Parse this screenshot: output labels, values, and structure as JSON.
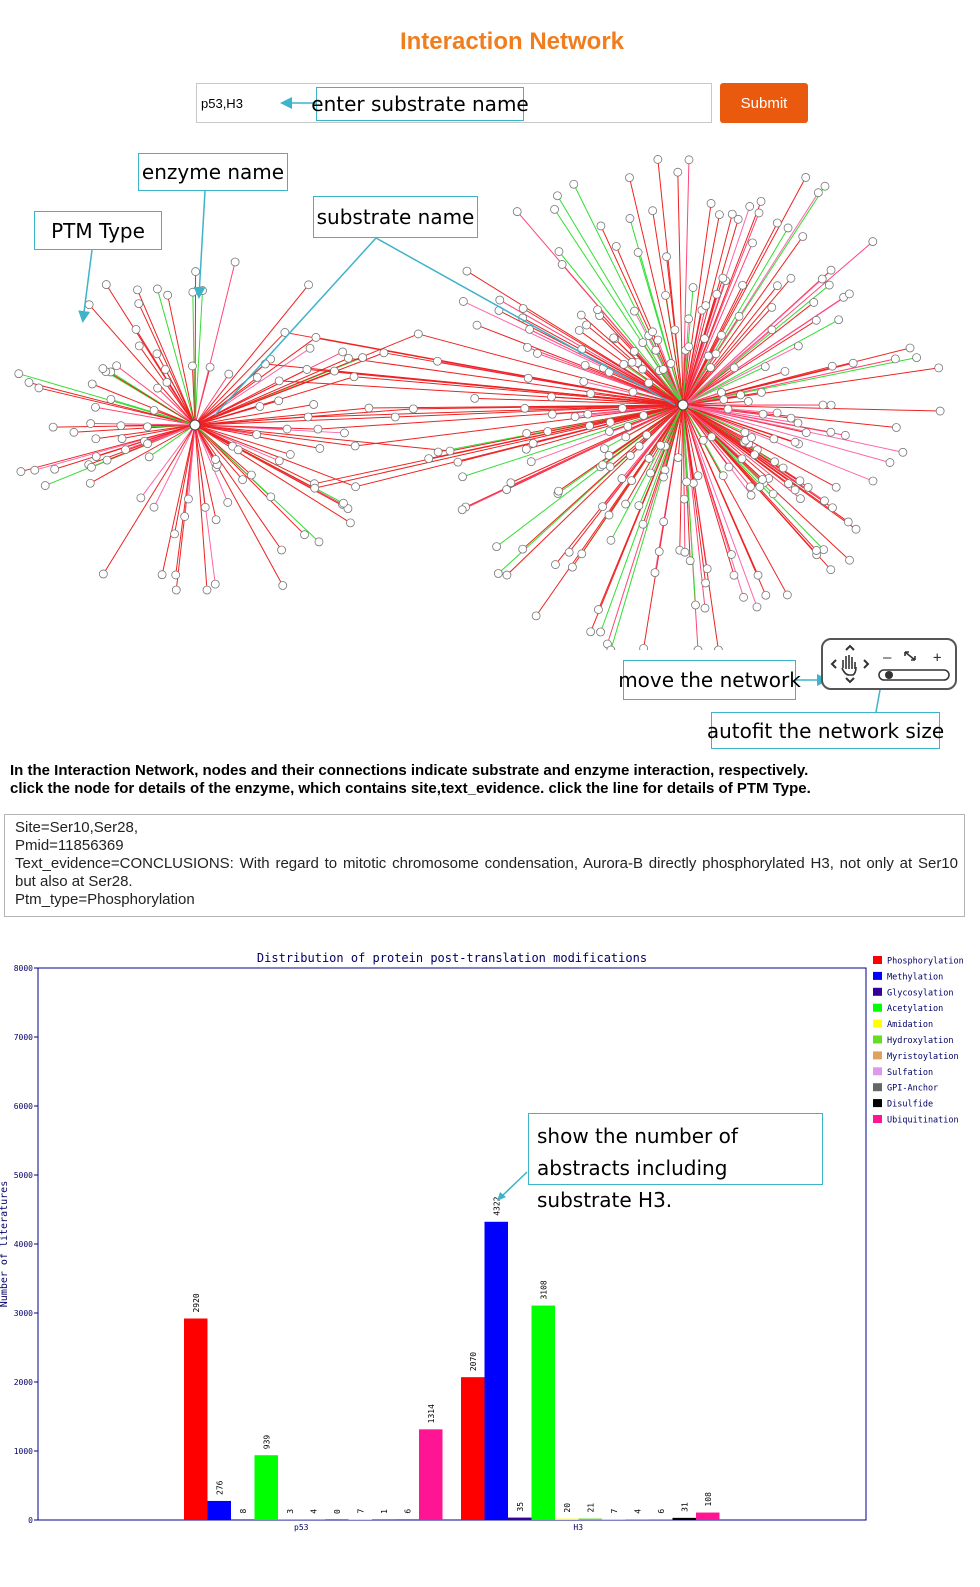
{
  "header": {
    "title": "Interaction Network"
  },
  "search": {
    "value": "p53,H3",
    "submit_label": "Submit"
  },
  "annotations": {
    "enter_substrate": "enter substrate name",
    "enzyme_name": "enzyme name",
    "ptm_type": "PTM Type",
    "substrate_name": "substrate name",
    "move_network": "move the network",
    "autofit": "autofit the network size",
    "show_abstracts": "show the number of abstracts including substrate H3."
  },
  "description": {
    "line1": "In the Interaction Network, nodes and their connections indicate substrate and enzyme interaction, respectively.",
    "line2": "click the node for details of the enzyme, which contains site,text_evidence. click the line for details of PTM Type."
  },
  "details": {
    "site": "Site=Ser10,Ser28,",
    "pmid": "Pmid=11856369",
    "text_evidence": "Text_evidence=CONCLUSIONS: With regard to mitotic chromosome condensation, Aurora-B directly phosphorylated H3, not only at Ser10 but also at Ser28.",
    "ptm_type": "Ptm_type=Phosphorylation"
  },
  "network_controls": {
    "zoom_out": "–",
    "zoom_in": "+"
  },
  "colors": {
    "title": "#f07d1e",
    "submit": "#ea5a0e",
    "callout_border": "#3fb3c9"
  },
  "chart_data": {
    "type": "bar",
    "title": "Distribution of protein post-translation modifications",
    "ylabel": "Number of literatures",
    "xlabel": "",
    "ylim": [
      0,
      8000
    ],
    "yticks": [
      0,
      1000,
      2000,
      3000,
      4000,
      5000,
      6000,
      7000,
      8000
    ],
    "categories": [
      "p53",
      "H3"
    ],
    "legend_position": "right",
    "series": [
      {
        "name": "Phosphorylation",
        "color": "#ff0000",
        "values": [
          2920,
          2070
        ]
      },
      {
        "name": "Methylation",
        "color": "#0000ff",
        "values": [
          276,
          4322
        ]
      },
      {
        "name": "Glycosylation",
        "color": "#330099",
        "values": [
          8,
          35
        ]
      },
      {
        "name": "Acetylation",
        "color": "#00ff00",
        "values": [
          939,
          3108
        ]
      },
      {
        "name": "Amidation",
        "color": "#ffff00",
        "values": [
          3,
          20
        ]
      },
      {
        "name": "Hydroxylation",
        "color": "#66dd22",
        "values": [
          4,
          21
        ]
      },
      {
        "name": "Myristoylation",
        "color": "#e0a060",
        "values": [
          0,
          7
        ]
      },
      {
        "name": "Sulfation",
        "color": "#dd99ee",
        "values": [
          7,
          4
        ]
      },
      {
        "name": "GPI-Anchor",
        "color": "#666666",
        "values": [
          1,
          6
        ]
      },
      {
        "name": "Disulfide",
        "color": "#000000",
        "values": [
          6,
          31
        ]
      },
      {
        "name": "Ubiquitination",
        "color": "#ff1493",
        "values": [
          1314,
          108
        ]
      }
    ]
  }
}
